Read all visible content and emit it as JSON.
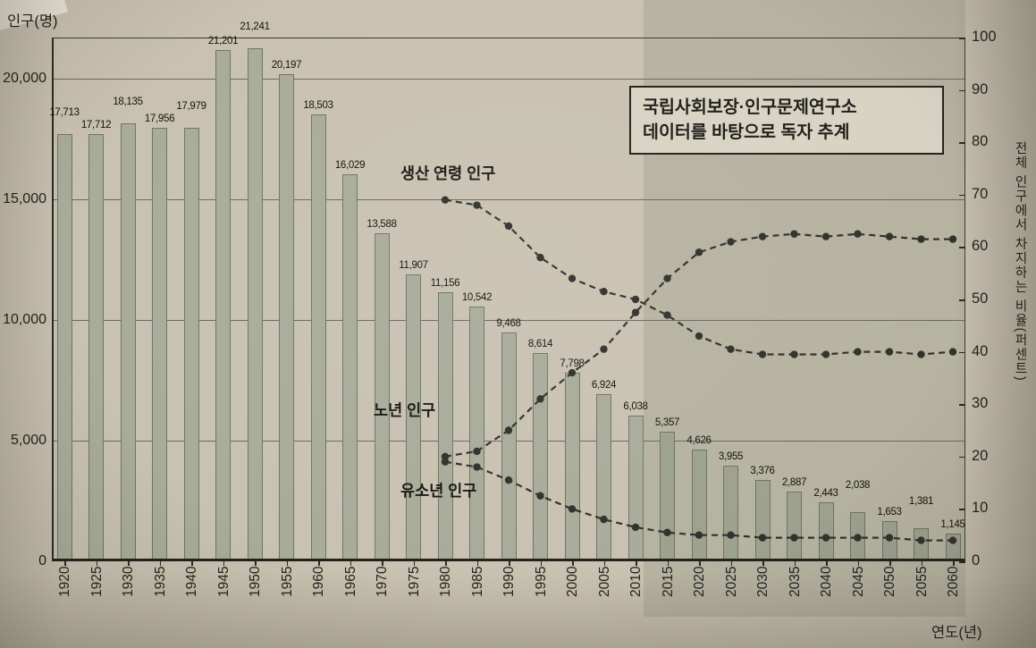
{
  "page": {
    "left_axis_title": "인구(명)",
    "right_axis_title": "전체 인구에서 차지하는 비율(퍼센트)",
    "x_axis_title": "연도(년)",
    "annotation": {
      "line1": "국립사회보장·인구문제연구소",
      "line2": "데이터를 바탕으로 독자 추계"
    }
  },
  "chart_data": {
    "type": "bar",
    "title": "",
    "categories": [
      "1920",
      "1925",
      "1930",
      "1935",
      "1940",
      "1945",
      "1950",
      "1955",
      "1960",
      "1965",
      "1970",
      "1975",
      "1980",
      "1985",
      "1990",
      "1995",
      "2000",
      "2005",
      "2010",
      "2015",
      "2020",
      "2025",
      "2030",
      "2035",
      "2040",
      "2045",
      "2050",
      "2055",
      "2060"
    ],
    "bars": {
      "name": "인구(명)",
      "values": [
        17713,
        17712,
        18135,
        17956,
        17979,
        21201,
        21241,
        20197,
        18503,
        16029,
        13588,
        11907,
        11156,
        10542,
        9468,
        8614,
        7798,
        6924,
        6038,
        5357,
        4626,
        3955,
        3376,
        2887,
        2443,
        2038,
        1653,
        1381,
        1145
      ],
      "labels": [
        "17,713",
        "17,712",
        "18,135",
        "17,956",
        "17,979",
        "21,201",
        "21,241",
        "20,197",
        "18,503",
        "16,029",
        "13,588",
        "11,907",
        "11,156",
        "10,542",
        "9,468",
        "8,614",
        "7,798",
        "6,924",
        "6,038",
        "5,357",
        "4,626",
        "3,955",
        "3,376",
        "2,887",
        "2,443",
        "2,038",
        "1,653",
        "1,381",
        "1,145"
      ]
    },
    "series": [
      {
        "key": "working",
        "name": "생산 연령 인구",
        "axis": "right",
        "start_year": "1980",
        "values": [
          69,
          68,
          64,
          58,
          54,
          51.5,
          50,
          47,
          43,
          40.5,
          39.5,
          39.5,
          39.5,
          40,
          40,
          39.5,
          40
        ]
      },
      {
        "key": "elderly",
        "name": "노년 인구",
        "axis": "right",
        "start_year": "1980",
        "values": [
          20,
          21,
          25,
          31,
          36,
          40.5,
          47.5,
          54,
          59,
          61,
          62,
          62.5,
          62,
          62.5,
          62,
          61.5,
          61.5
        ]
      },
      {
        "key": "children",
        "name": "유소년 인구",
        "axis": "right",
        "start_year": "1980",
        "values": [
          19,
          18,
          15.5,
          12.5,
          10,
          8,
          6.5,
          5.5,
          5,
          5,
          4.5,
          4.5,
          4.5,
          4.5,
          4.5,
          4,
          4
        ]
      }
    ],
    "left_axis": {
      "label": "인구(명)",
      "ticks": [
        {
          "value": 0,
          "label": "0"
        },
        {
          "value": 5000,
          "label": "5,000"
        },
        {
          "value": 10000,
          "label": "10,000"
        },
        {
          "value": 15000,
          "label": "15,000"
        },
        {
          "value": 20000,
          "label": "20,000"
        }
      ],
      "range": [
        0,
        21700
      ],
      "grid": true
    },
    "right_axis": {
      "label": "전체 인구에서 차지하는 비율(퍼센트)",
      "ticks": [
        0,
        10,
        20,
        30,
        40,
        50,
        60,
        70,
        80,
        90,
        100
      ],
      "range": [
        0,
        100
      ]
    },
    "projection": {
      "start_year": "2015",
      "note": "국립사회보장·인구문제연구소 데이터를 바탕으로 독자 추계"
    },
    "legend_position": "on-chart",
    "colors": {
      "bar": "#a9ac9a",
      "line": "#32322c",
      "shade": "rgba(108,110,90,0.18)",
      "paper": "#c9c2b1"
    }
  }
}
